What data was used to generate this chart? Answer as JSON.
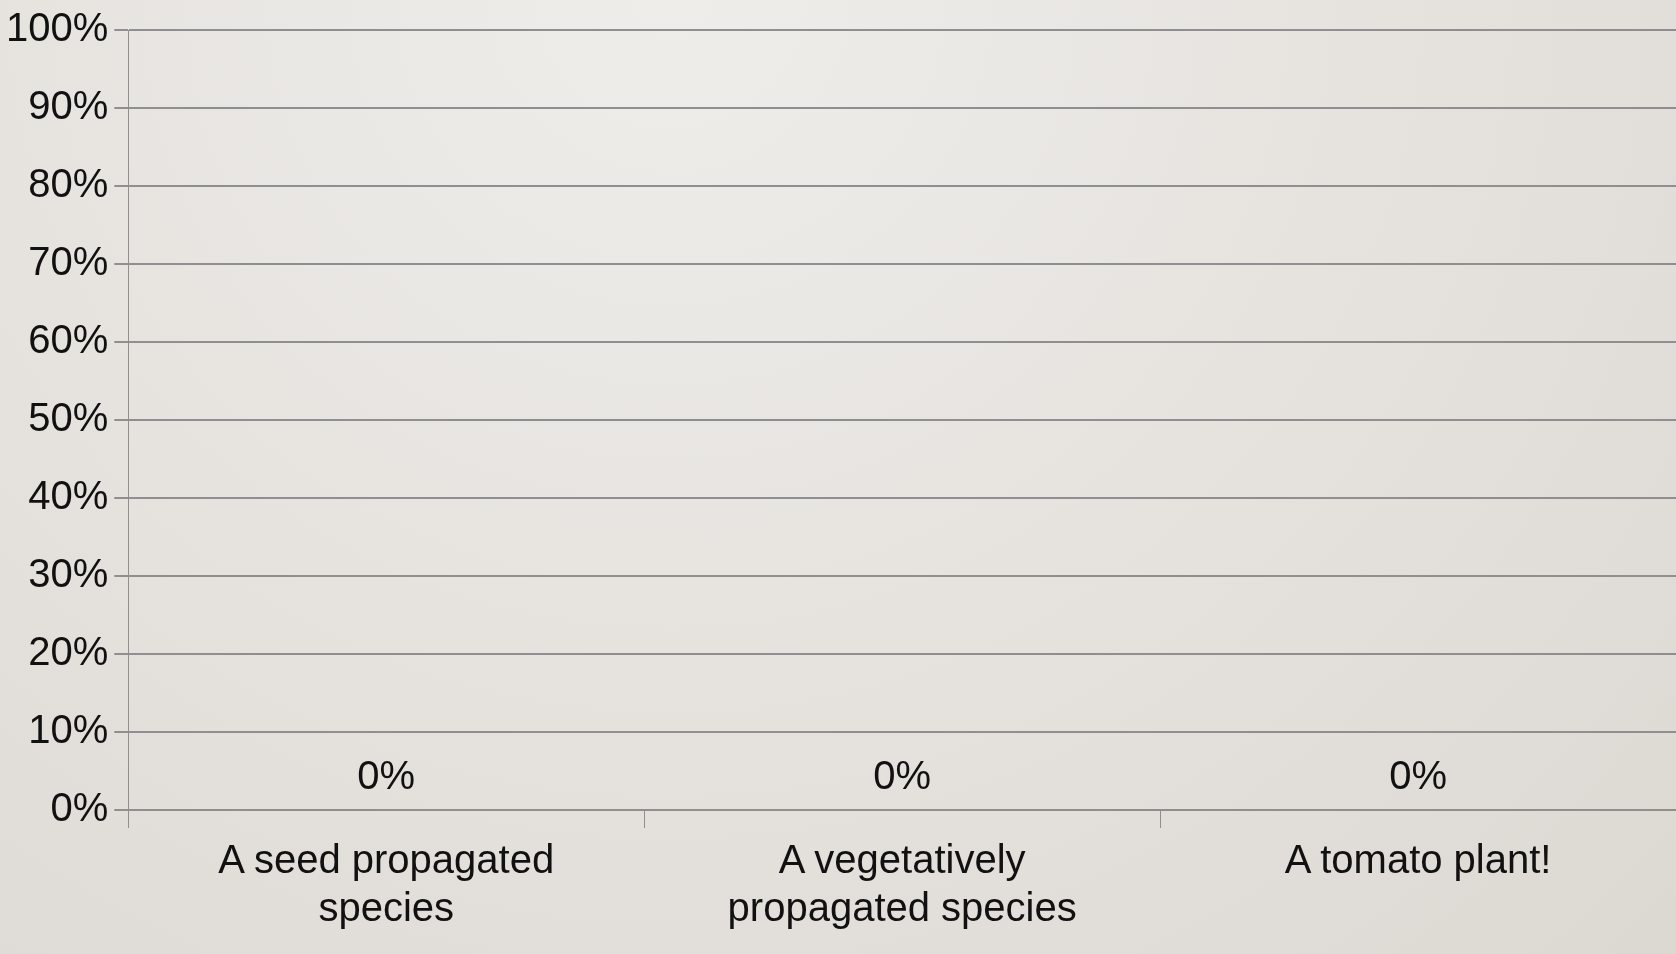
{
  "chart_data": {
    "type": "bar",
    "categories": [
      "A seed propagated species",
      "A vegetatively propagated species",
      "A tomato plant!"
    ],
    "values": [
      0,
      0,
      0
    ],
    "value_labels": [
      "0%",
      "0%",
      "0%"
    ],
    "ylim": [
      0,
      100
    ],
    "yticks": [
      {
        "value": 0,
        "label": "0%"
      },
      {
        "value": 10,
        "label": "10%"
      },
      {
        "value": 20,
        "label": "20%"
      },
      {
        "value": 30,
        "label": "30%"
      },
      {
        "value": 40,
        "label": "40%"
      },
      {
        "value": 50,
        "label": "50%"
      },
      {
        "value": 60,
        "label": "60%"
      },
      {
        "value": 70,
        "label": "70%"
      },
      {
        "value": 80,
        "label": "80%"
      },
      {
        "value": 90,
        "label": "90%"
      },
      {
        "value": 100,
        "label": "100%"
      }
    ],
    "grid": "y",
    "legend": false
  }
}
